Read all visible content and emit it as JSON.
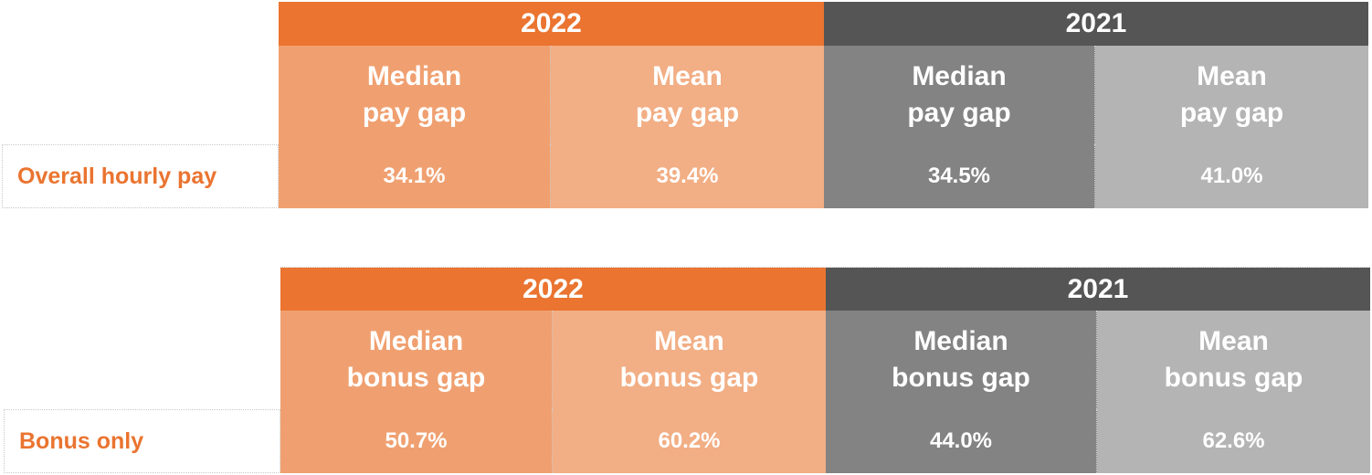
{
  "tables": [
    {
      "row_label": "Overall hourly pay",
      "years": [
        "2022",
        "2021"
      ],
      "headers": [
        {
          "line1": "Median",
          "line2": "pay gap"
        },
        {
          "line1": "Mean",
          "line2": "pay gap"
        },
        {
          "line1": "Median",
          "line2": "pay gap"
        },
        {
          "line1": "Mean",
          "line2": "pay gap"
        }
      ],
      "values": [
        "34.1%",
        "39.4%",
        "34.5%",
        "41.0%"
      ]
    },
    {
      "row_label": "Bonus only",
      "years": [
        "2022",
        "2021"
      ],
      "headers": [
        {
          "line1": "Median",
          "line2": "bonus gap"
        },
        {
          "line1": "Mean",
          "line2": "bonus gap"
        },
        {
          "line1": "Median",
          "line2": "bonus gap"
        },
        {
          "line1": "Mean",
          "line2": "bonus gap"
        }
      ],
      "values": [
        "50.7%",
        "60.2%",
        "44.0%",
        "62.6%"
      ]
    }
  ],
  "colors": {
    "year_2022": "#ea7430",
    "year_2021": "#555555",
    "median_2022": "#f0a070",
    "mean_2022": "#f2ae84",
    "median_2021": "#838383",
    "mean_2021": "#b4b4b4",
    "row_label_text": "#ea7430"
  }
}
